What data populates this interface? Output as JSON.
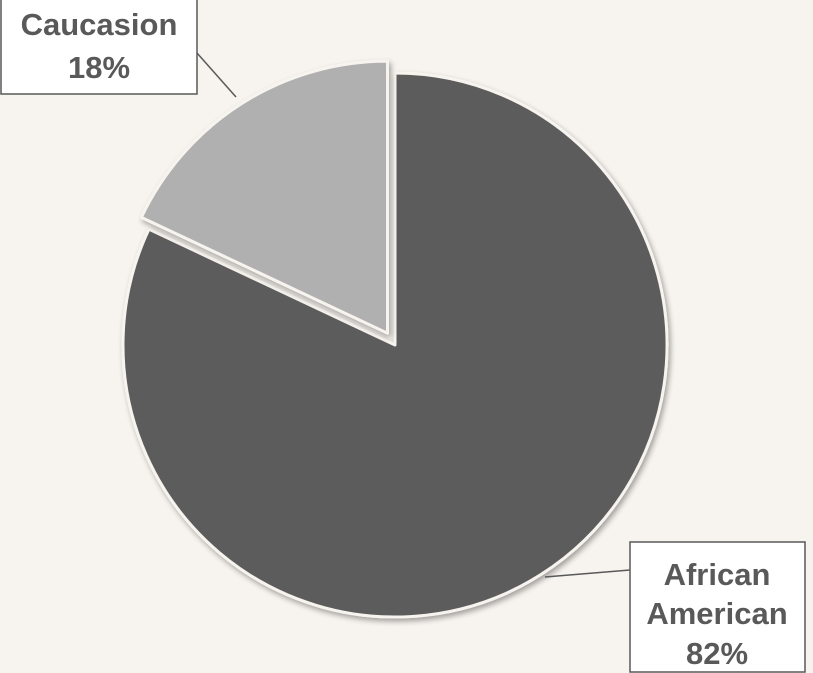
{
  "chart_data": {
    "type": "pie",
    "slices": [
      {
        "category": "African American",
        "percent_label": "82%",
        "value": 82,
        "color": "#5c5c5c",
        "exploded": false
      },
      {
        "category": "Caucasion",
        "percent_label": "18%",
        "value": 18,
        "color": "#b0b0b0",
        "exploded": true
      }
    ],
    "start_angle_deg": 0,
    "direction": "clockwise",
    "legend": "none",
    "background_color": "#f7f4ef",
    "label_box_color": "#ffffff",
    "label_text_color": "#595959",
    "leader_line_color": "#595959",
    "slice_border_color": "#f7f4ef"
  }
}
